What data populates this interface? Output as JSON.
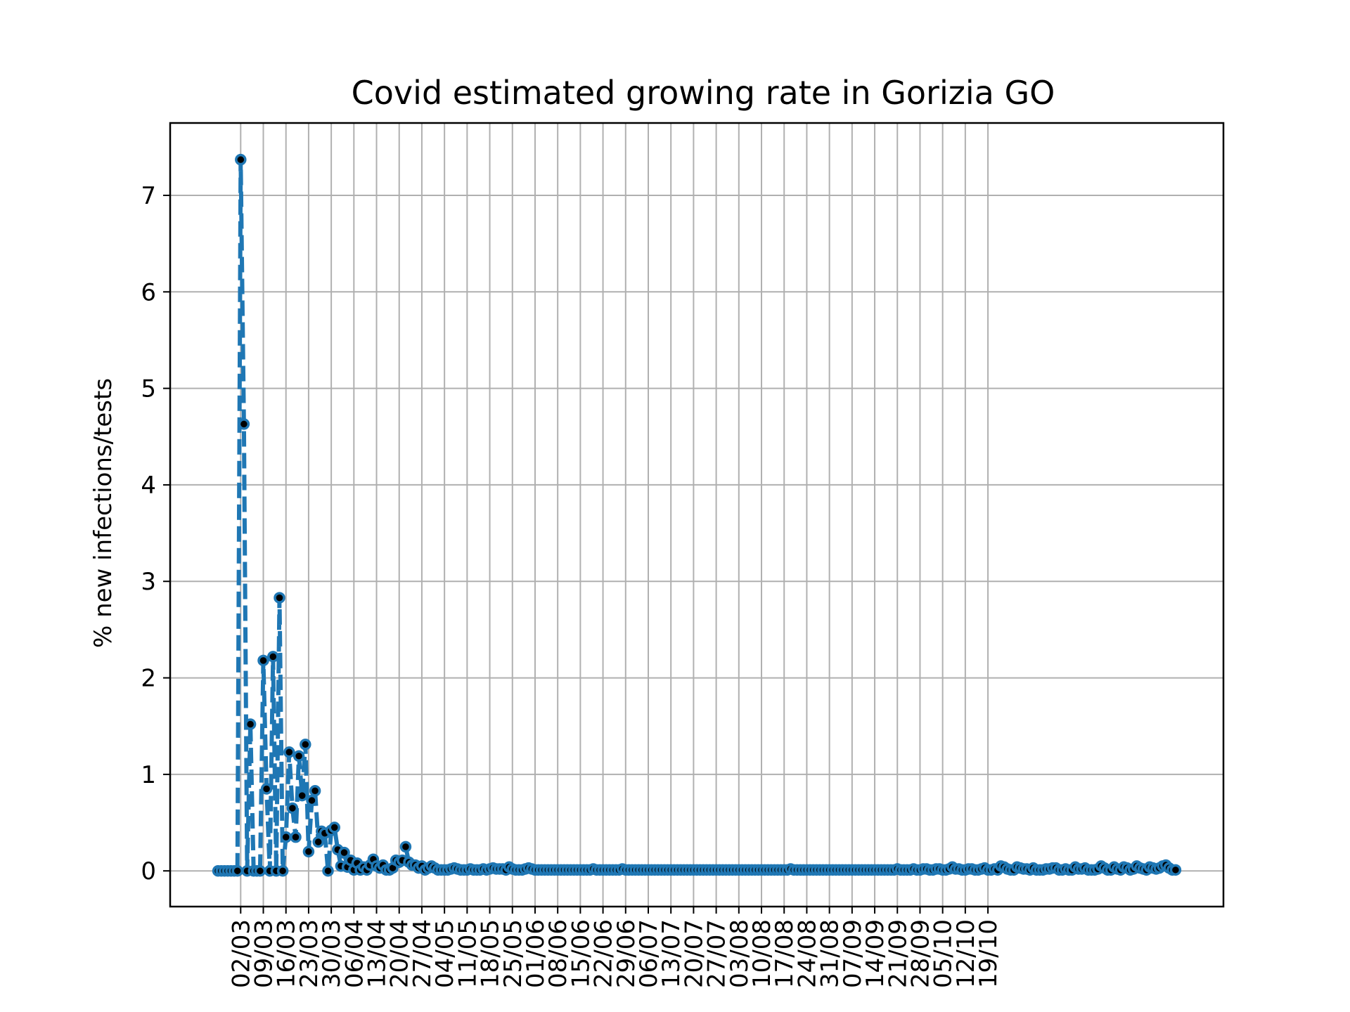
{
  "chart_data": {
    "type": "line",
    "title": "Covid estimated growing rate in Gorizia GO",
    "xlabel": "",
    "ylabel": "% new infections/tests",
    "ylim": [
      -0.37,
      7.75
    ],
    "y_ticks": [
      0,
      1,
      2,
      3,
      4,
      5,
      6,
      7
    ],
    "grid": true,
    "x_start": "2020-02-24",
    "x_ticks": [
      "02/03",
      "09/03",
      "16/03",
      "23/03",
      "30/03",
      "06/04",
      "13/04",
      "20/04",
      "27/04",
      "04/05",
      "11/05",
      "18/05",
      "25/05",
      "01/06",
      "08/06",
      "15/06",
      "22/06",
      "29/06",
      "06/07",
      "13/07",
      "20/07",
      "27/07",
      "03/08",
      "10/08",
      "17/08",
      "24/08",
      "31/08",
      "07/09",
      "14/09",
      "21/09",
      "28/09",
      "05/10",
      "12/10",
      "19/10"
    ],
    "series": [
      {
        "color": "#1f77b4",
        "marker_color": "#000000",
        "line_style": "dashed",
        "values": [
          0,
          0,
          0,
          0,
          0,
          0,
          0,
          7.37,
          4.63,
          0,
          1.52,
          0,
          0,
          0,
          2.18,
          0.85,
          0,
          2.22,
          0,
          2.83,
          0,
          0.35,
          1.23,
          0.65,
          0.35,
          1.19,
          0.78,
          1.31,
          0.2,
          0.73,
          0.83,
          0.3,
          0.41,
          0.39,
          0,
          0.42,
          0.45,
          0.22,
          0.05,
          0.19,
          0.04,
          0.11,
          0.01,
          0.08,
          0.01,
          0.04,
          0.01,
          0.06,
          0.12,
          0.05,
          0.03,
          0.06,
          0.01,
          0.01,
          0.03,
          0.11,
          0.09,
          0.11,
          0.25,
          0.09,
          0.06,
          0.06,
          0.03,
          0.05,
          0.01,
          0.03,
          0.05,
          0.03,
          0.01,
          0.01,
          0.01,
          0.01,
          0.02,
          0.03,
          0.02,
          0.01,
          0.01,
          0.01,
          0.02,
          0.01,
          0.01,
          0.01,
          0.02,
          0.01,
          0.02,
          0.03,
          0.02,
          0.02,
          0.02,
          0.01,
          0.04,
          0.02,
          0.01,
          0.01,
          0.01,
          0.02,
          0.03,
          0.02,
          0.01,
          0.01,
          0.01,
          0.01,
          0.01,
          0.01,
          0.01,
          0.01,
          0.01,
          0.01,
          0.01,
          0.01,
          0.01,
          0.01,
          0.01,
          0.01,
          0.01,
          0.01,
          0.02,
          0.01,
          0.01,
          0.01,
          0.01,
          0.01,
          0.01,
          0.01,
          0.01,
          0.02,
          0.01,
          0.01,
          0.01,
          0.01,
          0.01,
          0.01,
          0.01,
          0.01,
          0.01,
          0.01,
          0.01,
          0.01,
          0.01,
          0.01,
          0.01,
          0.01,
          0.01,
          0.01,
          0.01,
          0.01,
          0.01,
          0.01,
          0.01,
          0.01,
          0.01,
          0.01,
          0.01,
          0.01,
          0.01,
          0.01,
          0.01,
          0.01,
          0.01,
          0.01,
          0.01,
          0.01,
          0.01,
          0.01,
          0.01,
          0.01,
          0.01,
          0.01,
          0.01,
          0.01,
          0.01,
          0.01,
          0.01,
          0.01,
          0.01,
          0.01,
          0.01,
          0.02,
          0.01,
          0.01,
          0.01,
          0.01,
          0.01,
          0.01,
          0.01,
          0.01,
          0.01,
          0.01,
          0.01,
          0.01,
          0.01,
          0.01,
          0.01,
          0.01,
          0.01,
          0.01,
          0.01,
          0.01,
          0.01,
          0.01,
          0.01,
          0.01,
          0.01,
          0.01,
          0.01,
          0.01,
          0.01,
          0.01,
          0.01,
          0.01,
          0.02,
          0.01,
          0.01,
          0.01,
          0.01,
          0.02,
          0.01,
          0.01,
          0.02,
          0.02,
          0.01,
          0.01,
          0.02,
          0.02,
          0.01,
          0.01,
          0.02,
          0.04,
          0.02,
          0.02,
          0.01,
          0.01,
          0.02,
          0.02,
          0.01,
          0.01,
          0.02,
          0.03,
          0.01,
          0.01,
          0.02,
          0.01,
          0.05,
          0.04,
          0.02,
          0.01,
          0.01,
          0.04,
          0.03,
          0.02,
          0.02,
          0.01,
          0.03,
          0.01,
          0.01,
          0.01,
          0.02,
          0.02,
          0.03,
          0.03,
          0.01,
          0.01,
          0.02,
          0.01,
          0.01,
          0.04,
          0.02,
          0.02,
          0.03,
          0.01,
          0.01,
          0.01,
          0.02,
          0.05,
          0.03,
          0.01,
          0.01,
          0.04,
          0.02,
          0.01,
          0.04,
          0.03,
          0.01,
          0.02,
          0.05,
          0.03,
          0.02,
          0.01,
          0.04,
          0.03,
          0.02,
          0.03,
          0.05,
          0.06,
          0.03,
          0.01,
          0.01
        ]
      }
    ]
  }
}
